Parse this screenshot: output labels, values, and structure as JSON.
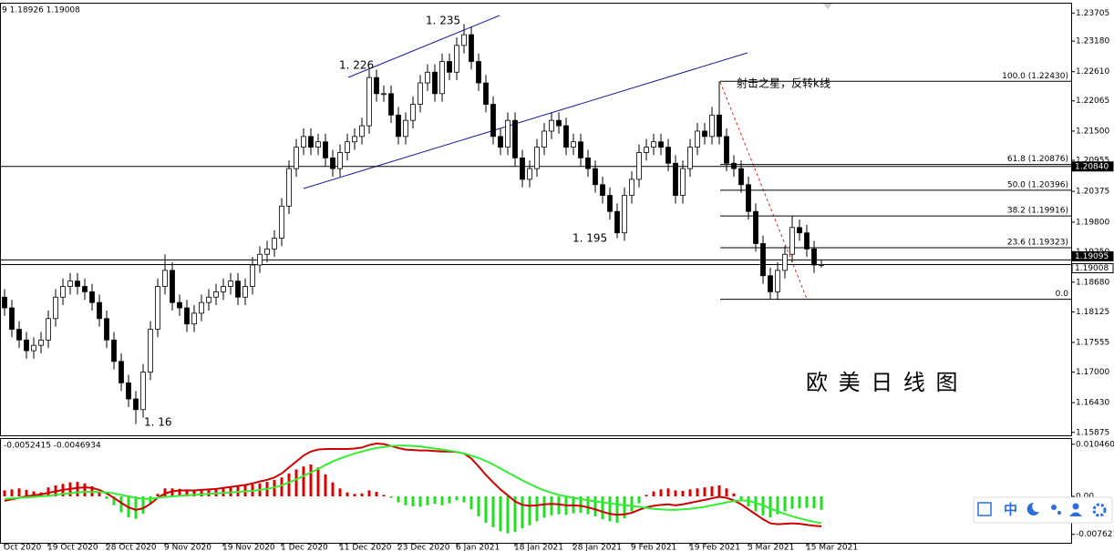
{
  "chart_data": {
    "type": "candlestick",
    "header": "9 1.18926 1.19008",
    "categories": [
      "Oct 2020",
      null,
      null,
      null,
      null,
      null,
      "19 Oct 2020",
      null,
      null,
      null,
      null,
      null,
      null,
      null,
      "28 Oct 2020",
      null,
      null,
      null,
      null,
      null,
      null,
      null,
      "9 Nov 2020",
      null,
      null,
      null,
      null,
      null,
      null,
      null,
      "19 Nov 2020",
      null,
      null,
      null,
      null,
      null,
      null,
      null,
      "1 Dec 2020",
      null,
      null,
      null,
      null,
      null,
      null,
      null,
      "11 Dec 2020",
      null,
      null,
      null,
      null,
      null,
      null,
      null,
      "23 Dec 2020",
      null,
      null,
      null,
      null,
      null,
      null,
      null,
      "6 Jan 2021",
      null,
      null,
      null,
      null,
      null,
      null,
      null,
      "18 Jan 2021",
      null,
      null,
      null,
      null,
      null,
      null,
      null,
      "28 Jan 2021",
      null,
      null,
      null,
      null,
      null,
      null,
      null,
      "9 Feb 2021",
      null,
      null,
      null,
      null,
      null,
      null,
      null,
      "19 Feb 2021",
      null,
      null,
      null,
      null,
      null,
      null,
      null,
      "3 Mar 2021",
      null,
      null,
      null,
      null,
      null,
      null,
      null,
      "15 Mar 2021",
      null,
      null
    ],
    "candles": [
      [
        1.184,
        1.1855,
        1.1805,
        1.182
      ],
      [
        1.182,
        1.1835,
        1.1765,
        1.178
      ],
      [
        1.178,
        1.1795,
        1.1745,
        1.176
      ],
      [
        1.176,
        1.1775,
        1.1725,
        1.174
      ],
      [
        1.174,
        1.1765,
        1.1725,
        1.175
      ],
      [
        1.175,
        1.1775,
        1.1735,
        1.176
      ],
      [
        1.176,
        1.1815,
        1.1745,
        1.18
      ],
      [
        1.18,
        1.1855,
        1.1785,
        1.184
      ],
      [
        1.184,
        1.1875,
        1.1825,
        1.186
      ],
      [
        1.186,
        1.1885,
        1.1845,
        1.187
      ],
      [
        1.187,
        1.1885,
        1.1845,
        1.186
      ],
      [
        1.186,
        1.1875,
        1.1835,
        1.185
      ],
      [
        1.185,
        1.1865,
        1.1815,
        1.183
      ],
      [
        1.183,
        1.1845,
        1.1785,
        1.18
      ],
      [
        1.18,
        1.1815,
        1.1745,
        1.176
      ],
      [
        1.176,
        1.1775,
        1.1705,
        1.172
      ],
      [
        1.172,
        1.1735,
        1.1665,
        1.168
      ],
      [
        1.168,
        1.1695,
        1.1635,
        1.165
      ],
      [
        1.165,
        1.1665,
        1.1603,
        1.163
      ],
      [
        1.163,
        1.1715,
        1.1615,
        1.17
      ],
      [
        1.17,
        1.1795,
        1.1685,
        1.178
      ],
      [
        1.178,
        1.1875,
        1.1765,
        1.186
      ],
      [
        1.186,
        1.192,
        1.1845,
        1.189
      ],
      [
        1.189,
        1.1905,
        1.1815,
        1.183
      ],
      [
        1.183,
        1.1845,
        1.1805,
        1.182
      ],
      [
        1.182,
        1.1835,
        1.1775,
        1.179
      ],
      [
        1.179,
        1.1825,
        1.1775,
        1.181
      ],
      [
        1.181,
        1.1845,
        1.1795,
        1.183
      ],
      [
        1.183,
        1.1855,
        1.1815,
        1.184
      ],
      [
        1.184,
        1.1865,
        1.1825,
        1.185
      ],
      [
        1.185,
        1.1875,
        1.1835,
        1.186
      ],
      [
        1.186,
        1.1885,
        1.1845,
        1.187
      ],
      [
        1.187,
        1.1885,
        1.1825,
        1.184
      ],
      [
        1.184,
        1.1875,
        1.1825,
        1.186
      ],
      [
        1.186,
        1.1915,
        1.1845,
        1.19
      ],
      [
        1.19,
        1.1935,
        1.1885,
        1.192
      ],
      [
        1.192,
        1.1945,
        1.1905,
        1.193
      ],
      [
        1.193,
        1.1965,
        1.1915,
        1.195
      ],
      [
        1.195,
        1.2025,
        1.1935,
        1.201
      ],
      [
        1.201,
        1.2095,
        1.1995,
        1.208
      ],
      [
        1.208,
        1.2135,
        1.2065,
        1.212
      ],
      [
        1.212,
        1.2155,
        1.2105,
        1.214
      ],
      [
        1.214,
        1.2155,
        1.2105,
        1.212
      ],
      [
        1.212,
        1.2145,
        1.2105,
        1.213
      ],
      [
        1.213,
        1.2145,
        1.2085,
        1.21
      ],
      [
        1.21,
        1.2115,
        1.2065,
        1.208
      ],
      [
        1.208,
        1.2125,
        1.2065,
        1.211
      ],
      [
        1.211,
        1.2145,
        1.2095,
        1.213
      ],
      [
        1.213,
        1.2155,
        1.2115,
        1.214
      ],
      [
        1.214,
        1.2175,
        1.2125,
        1.216
      ],
      [
        1.216,
        1.2265,
        1.2145,
        1.225
      ],
      [
        1.225,
        1.2265,
        1.2205,
        1.222
      ],
      [
        1.222,
        1.2235,
        1.2205,
        1.222
      ],
      [
        1.222,
        1.2235,
        1.2165,
        1.218
      ],
      [
        1.218,
        1.2195,
        1.2125,
        1.214
      ],
      [
        1.214,
        1.2185,
        1.2125,
        1.217
      ],
      [
        1.217,
        1.2215,
        1.2155,
        1.22
      ],
      [
        1.22,
        1.2255,
        1.2185,
        1.224
      ],
      [
        1.224,
        1.2275,
        1.2225,
        1.226
      ],
      [
        1.226,
        1.2275,
        1.2205,
        1.222
      ],
      [
        1.222,
        1.2295,
        1.2205,
        1.228
      ],
      [
        1.228,
        1.2295,
        1.2245,
        1.226
      ],
      [
        1.226,
        1.2325,
        1.2245,
        1.231
      ],
      [
        1.231,
        1.235,
        1.2295,
        1.233
      ],
      [
        1.233,
        1.2345,
        1.2265,
        1.228
      ],
      [
        1.228,
        1.2295,
        1.2225,
        1.224
      ],
      [
        1.224,
        1.2255,
        1.2185,
        1.22
      ],
      [
        1.22,
        1.2215,
        1.2125,
        1.214
      ],
      [
        1.214,
        1.2155,
        1.2105,
        1.212
      ],
      [
        1.212,
        1.2185,
        1.2105,
        1.217
      ],
      [
        1.217,
        1.2185,
        1.2085,
        1.21
      ],
      [
        1.21,
        1.2115,
        1.2045,
        1.206
      ],
      [
        1.206,
        1.2095,
        1.2045,
        1.208
      ],
      [
        1.208,
        1.2135,
        1.2065,
        1.212
      ],
      [
        1.212,
        1.2165,
        1.2105,
        1.215
      ],
      [
        1.215,
        1.2185,
        1.2135,
        1.217
      ],
      [
        1.217,
        1.2185,
        1.2145,
        1.216
      ],
      [
        1.216,
        1.2175,
        1.2105,
        1.212
      ],
      [
        1.212,
        1.2145,
        1.2105,
        1.213
      ],
      [
        1.213,
        1.2145,
        1.2085,
        1.21
      ],
      [
        1.21,
        1.2115,
        1.2065,
        1.208
      ],
      [
        1.208,
        1.2095,
        1.2035,
        1.205
      ],
      [
        1.205,
        1.2065,
        1.2015,
        1.203
      ],
      [
        1.203,
        1.2045,
        1.1985,
        1.2
      ],
      [
        1.2,
        1.2015,
        1.195,
        1.196
      ],
      [
        1.196,
        1.2045,
        1.1945,
        1.203
      ],
      [
        1.203,
        1.2075,
        1.2015,
        1.206
      ],
      [
        1.206,
        1.2125,
        1.2045,
        1.211
      ],
      [
        1.211,
        1.2135,
        1.2095,
        1.212
      ],
      [
        1.212,
        1.2145,
        1.2105,
        1.213
      ],
      [
        1.213,
        1.2145,
        1.2105,
        1.212
      ],
      [
        1.212,
        1.2135,
        1.2075,
        1.209
      ],
      [
        1.209,
        1.2105,
        1.2015,
        1.203
      ],
      [
        1.203,
        1.2095,
        1.2015,
        1.208
      ],
      [
        1.208,
        1.2135,
        1.2065,
        1.212
      ],
      [
        1.212,
        1.2165,
        1.2105,
        1.215
      ],
      [
        1.215,
        1.2165,
        1.2125,
        1.214
      ],
      [
        1.214,
        1.2195,
        1.2125,
        1.218
      ],
      [
        1.218,
        1.2243,
        1.2125,
        1.214
      ],
      [
        1.214,
        1.2155,
        1.2075,
        1.209
      ],
      [
        1.209,
        1.2105,
        1.2065,
        1.208
      ],
      [
        1.208,
        1.2095,
        1.2035,
        1.205
      ],
      [
        1.205,
        1.2065,
        1.1985,
        1.2
      ],
      [
        1.2,
        1.2015,
        1.1925,
        1.194
      ],
      [
        1.194,
        1.1955,
        1.1865,
        1.188
      ],
      [
        1.188,
        1.1895,
        1.1836,
        1.185
      ],
      [
        1.185,
        1.1905,
        1.1835,
        1.189
      ],
      [
        1.189,
        1.1935,
        1.1875,
        1.192
      ],
      [
        1.192,
        1.1992,
        1.1905,
        1.197
      ],
      [
        1.197,
        1.1985,
        1.1945,
        1.196
      ],
      [
        1.196,
        1.1975,
        1.1915,
        1.193
      ],
      [
        1.193,
        1.1945,
        1.1885,
        1.19
      ],
      [
        1.19,
        1.191,
        1.1895,
        1.1901
      ]
    ],
    "bull_color": "#ffffff",
    "bear_color": "#000000",
    "ylim": [
      1.1582,
      1.2388
    ],
    "yticks": [
      1.23705,
      {
        "value": 1.2318,
        "label": "1.23180"
      },
      {
        "value": 1.2261,
        "label": "1.22610"
      },
      1.22065,
      {
        "value": 1.215,
        "label": "1.21500"
      },
      1.20955,
      1.20375,
      {
        "value": 1.198,
        "label": "1.19800"
      },
      {
        "value": 1.1925,
        "label": "1.19250"
      },
      {
        "value": 1.1868,
        "label": "1.18680"
      },
      1.18125,
      1.17555,
      {
        "value": 1.17,
        "label": "1.17000"
      },
      {
        "value": 1.1643,
        "label": "1.16430"
      },
      1.15875
    ],
    "hlines": [
      {
        "value": 1.2084,
        "label": "1.20840"
      },
      {
        "value": 1.19095,
        "label": "1.19095"
      },
      {
        "value": 1.19008,
        "label": "1.19008"
      }
    ],
    "fib_levels": [
      {
        "label": "100.0 (1.22430)",
        "value": 1.2243
      },
      {
        "label": "61.8 (1.20876)",
        "value": 1.20876
      },
      {
        "label": "50.0 (1.20396)",
        "value": 1.20396
      },
      {
        "label": "38.2 (1.19916)",
        "value": 1.19916
      },
      {
        "label": "23.6 (1.19323)",
        "value": 1.19323
      },
      {
        "label": "0.0",
        "value": 1.1836
      }
    ],
    "annotations": {
      "high1": "1. 235",
      "high2": "1. 226",
      "low1": "1. 195",
      "low2": "1. 16",
      "note": "射击之星，反转k线",
      "title": "欧 美 日 线 图"
    },
    "macd": {
      "header": "-0.0052415 -0.0046934",
      "ylim": [
        -0.0095,
        0.0117
      ],
      "yticks": [
        {
          "value": 0.01046,
          "label": "0.010460"
        },
        {
          "value": 0,
          "label": "0.00"
        },
        -0.007621
      ],
      "histogram": {
        "pos_color": "#dd0000",
        "neg_color": "#22dd22",
        "values": [
          0.0012,
          0.0014,
          0.0016,
          0.0013,
          0.001,
          0.0008,
          0.0018,
          0.0022,
          0.0025,
          0.0028,
          0.0029,
          0.0026,
          0.002,
          0.0008,
          -0.0005,
          -0.0018,
          -0.0032,
          -0.0042,
          -0.0045,
          -0.0035,
          -0.0015,
          0.0005,
          0.0016,
          0.0016,
          0.0015,
          0.0014,
          0.0013,
          0.0012,
          0.0013,
          0.0014,
          0.0016,
          0.0018,
          0.002,
          0.0022,
          0.0024,
          0.0026,
          0.0029,
          0.0033,
          0.0038,
          0.0046,
          0.0054,
          0.006,
          0.0064,
          0.0058,
          0.0044,
          0.0028,
          0.0016,
          0.0008,
          0.0005,
          0.0006,
          0.0012,
          0.0009,
          0.0003,
          -0.0003,
          -0.0012,
          -0.0018,
          -0.002,
          -0.0021,
          -0.0018,
          -0.0015,
          -0.0018,
          -0.0014,
          -0.0008,
          -0.0012,
          -0.0026,
          -0.004,
          -0.0053,
          -0.0062,
          -0.007,
          -0.0074,
          -0.0071,
          -0.0064,
          -0.0058,
          -0.005,
          -0.0043,
          -0.0038,
          -0.0036,
          -0.0037,
          -0.0034,
          -0.0033,
          -0.0036,
          -0.004,
          -0.0046,
          -0.005,
          -0.0053,
          -0.0044,
          -0.003,
          -0.0014,
          0.0003,
          0.001,
          0.0014,
          0.0016,
          0.0012,
          0.0011,
          0.0014,
          0.0016,
          0.0018,
          0.002,
          0.0022,
          0.0016,
          0.0006,
          -0.0008,
          -0.002,
          -0.003,
          -0.0038,
          -0.0042,
          -0.0036,
          -0.003,
          -0.0025,
          -0.0024,
          -0.0023,
          -0.0024,
          -0.0027
        ]
      },
      "series": [
        {
          "color": "#cc0000",
          "values": [
            -0.0009,
            -0.0006,
            -0.0003,
            0.0,
            0.0002,
            0.0004,
            0.0007,
            0.001,
            0.0013,
            0.0015,
            0.0017,
            0.0018,
            0.0017,
            0.0013,
            0.0006,
            -0.0003,
            -0.0013,
            -0.0022,
            -0.0027,
            -0.0024,
            -0.0015,
            -0.0003,
            0.0006,
            0.001,
            0.0012,
            0.0012,
            0.0012,
            0.0013,
            0.0014,
            0.0015,
            0.0017,
            0.0019,
            0.0021,
            0.0023,
            0.0026,
            0.003,
            0.0033,
            0.0038,
            0.0046,
            0.0058,
            0.007,
            0.0082,
            0.009,
            0.0094,
            0.0095,
            0.0095,
            0.0095,
            0.0095,
            0.0096,
            0.0098,
            0.0103,
            0.0106,
            0.0105,
            0.0101,
            0.0097,
            0.0094,
            0.0093,
            0.0092,
            0.0092,
            0.0091,
            0.009,
            0.009,
            0.0089,
            0.0086,
            0.0076,
            0.006,
            0.0043,
            0.0028,
            0.0014,
            0.0002,
            -0.001,
            -0.0017,
            -0.0019,
            -0.0018,
            -0.0016,
            -0.0015,
            -0.0016,
            -0.0018,
            -0.0018,
            -0.0019,
            -0.0022,
            -0.0026,
            -0.0031,
            -0.0035,
            -0.0037,
            -0.0036,
            -0.0033,
            -0.0027,
            -0.0022,
            -0.0019,
            -0.0017,
            -0.0016,
            -0.0018,
            -0.0016,
            -0.0013,
            -0.001,
            -0.0007,
            -0.0004,
            -0.0001,
            -0.0003,
            -0.0008,
            -0.0016,
            -0.0026,
            -0.0036,
            -0.0046,
            -0.0054,
            -0.0056,
            -0.0055,
            -0.0054,
            -0.0055,
            -0.0057,
            -0.0059,
            -0.006
          ]
        },
        {
          "color": "#33ee33",
          "values": [
            -0.0005,
            -0.0004,
            -0.0003,
            -0.0002,
            -0.0001,
            0.0,
            0.0001,
            0.0003,
            0.0005,
            0.0006,
            0.0008,
            0.0009,
            0.0009,
            0.0009,
            0.0008,
            0.0006,
            0.0003,
            0.0,
            -0.0003,
            -0.0005,
            -0.0005,
            -0.0003,
            -0.0001,
            0.0,
            0.0001,
            0.0002,
            0.0003,
            0.0004,
            0.0005,
            0.0006,
            0.0007,
            0.0008,
            0.0009,
            0.001,
            0.0011,
            0.0013,
            0.0015,
            0.0018,
            0.0022,
            0.0028,
            0.0034,
            0.0041,
            0.0048,
            0.0055,
            0.0063,
            0.007,
            0.0076,
            0.0081,
            0.0086,
            0.009,
            0.0094,
            0.0097,
            0.0099,
            0.0101,
            0.0102,
            0.0102,
            0.0101,
            0.01,
            0.0098,
            0.0096,
            0.0094,
            0.0092,
            0.0089,
            0.0086,
            0.0082,
            0.0077,
            0.0071,
            0.0064,
            0.0056,
            0.0048,
            0.004,
            0.0032,
            0.0025,
            0.0018,
            0.0012,
            0.0007,
            0.0003,
            0.0,
            -0.0003,
            -0.0005,
            -0.0008,
            -0.001,
            -0.0012,
            -0.0014,
            -0.0016,
            -0.0018,
            -0.0019,
            -0.0021,
            -0.0023,
            -0.0025,
            -0.0026,
            -0.0027,
            -0.0027,
            -0.0026,
            -0.0025,
            -0.0023,
            -0.0021,
            -0.0018,
            -0.0015,
            -0.0012,
            -0.0009,
            -0.0008,
            -0.0009,
            -0.0013,
            -0.0018,
            -0.0024,
            -0.003,
            -0.0035,
            -0.004,
            -0.0044,
            -0.0048,
            -0.0051,
            -0.0054
          ]
        }
      ]
    },
    "toolbar": "中"
  }
}
